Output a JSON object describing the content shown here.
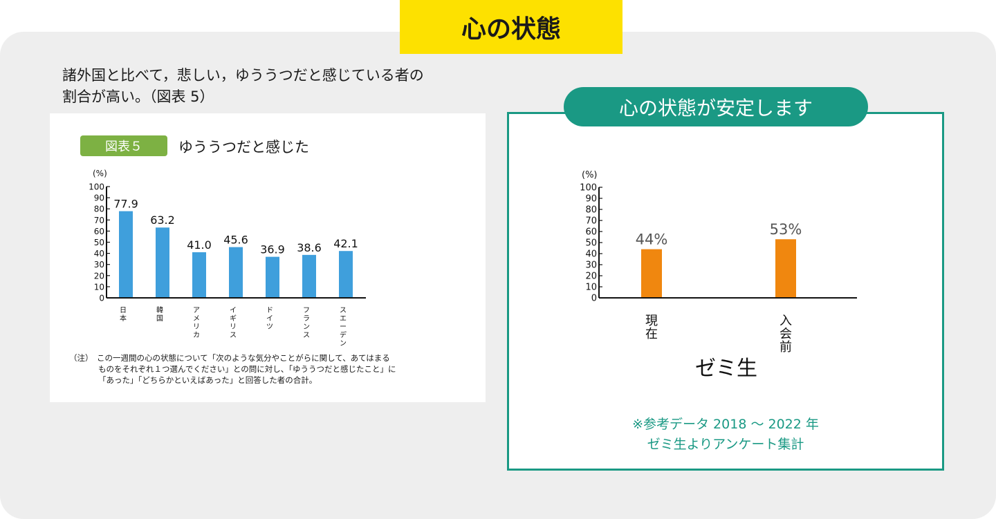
{
  "page_title": "心の状態",
  "intro": {
    "line1": "諸外国と比べて，悲しい，ゆううつだと感じている者の",
    "line2": "割合が高い。（図表 5）"
  },
  "figure": {
    "badge": "図表５",
    "title": "ゆううつだと感じた",
    "note_label": "（注）",
    "note_lines": [
      "この一週間の心の状態について「次のような気分やことがらに関して、あてはまる",
      "ものをそれぞれ１つ選んでください」との問に対し、「ゆううつだと感じたこと」に",
      "「あった」「どちらかといえばあった」と回答した者の合計。"
    ]
  },
  "right_panel": {
    "tab_title": "心の状態が安定します",
    "group_label": "ゼミ生",
    "source_lines": [
      "※参考データ 2018 〜 2022 年",
      "ゼミ生よりアンケート集計"
    ]
  },
  "colors": {
    "title_bg": "#fde100",
    "blue_bar": "#3f9fdc",
    "orange_bar": "#f0870f",
    "teal": "#1a9984",
    "green_badge": "#7db143"
  },
  "chart_data": [
    {
      "type": "bar",
      "title": "ゆううつだと感じた",
      "ylabel": "(%)",
      "ylim": [
        0,
        100
      ],
      "yticks": [
        0,
        10,
        20,
        30,
        40,
        50,
        60,
        70,
        80,
        90,
        100
      ],
      "categories": [
        "日本",
        "韓国",
        "アメリカ",
        "イギリス",
        "ドイツ",
        "フランス",
        "スエーデン"
      ],
      "values": [
        77.9,
        63.2,
        41.0,
        45.6,
        36.9,
        38.6,
        42.1
      ],
      "value_labels": [
        "77.9",
        "63.2",
        "41.0",
        "45.6",
        "36.9",
        "38.6",
        "42.1"
      ]
    },
    {
      "type": "bar",
      "title": "心の状態が安定します",
      "ylabel": "(%)",
      "ylim": [
        0,
        100
      ],
      "yticks": [
        0,
        10,
        20,
        30,
        40,
        50,
        60,
        70,
        80,
        90,
        100
      ],
      "categories": [
        "現在",
        "入会前"
      ],
      "values": [
        44,
        53
      ],
      "value_labels": [
        "44%",
        "53%"
      ],
      "xlabel": "ゼミ生"
    }
  ]
}
